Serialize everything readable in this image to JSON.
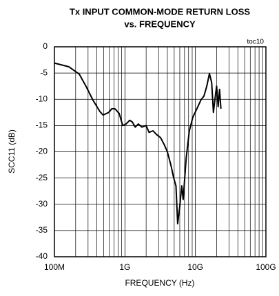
{
  "chart_data": {
    "type": "line",
    "title": "Tx INPUT COMMON-MODE RETURN LOSS",
    "subtitle": "vs. FREQUENCY",
    "annotation": "toc10",
    "x_label": "FREQUENCY (Hz)",
    "y_label": "SCC11 (dB)",
    "x_log": true,
    "grid": true,
    "xlim": [
      100000000.0,
      100000000000.0
    ],
    "ylim": [
      -40,
      0
    ],
    "xticks": [
      {
        "value": 100000000.0,
        "label": "100M"
      },
      {
        "value": 1000000000.0,
        "label": "1G"
      },
      {
        "value": 10000000000.0,
        "label": "10G"
      },
      {
        "value": 100000000000.0,
        "label": "100G"
      }
    ],
    "yticks": [
      0,
      -5,
      -10,
      -15,
      -20,
      -25,
      -30,
      -35,
      -40
    ],
    "x": [
      100000000.0,
      160000000.0,
      225000000.0,
      280000000.0,
      350000000.0,
      440000000.0,
      490000000.0,
      590000000.0,
      650000000.0,
      720000000.0,
      830000000.0,
      930000000.0,
      1040000000.0,
      1170000000.0,
      1270000000.0,
      1400000000.0,
      1550000000.0,
      1740000000.0,
      2000000000.0,
      2200000000.0,
      2500000000.0,
      2800000000.0,
      3200000000.0,
      3600000000.0,
      4000000000.0,
      4500000000.0,
      4900000000.0,
      5300000000.0,
      5600000000.0,
      6000000000.0,
      6400000000.0,
      6700000000.0,
      7400000000.0,
      8200000000.0,
      9200000000.0,
      10500000000.0,
      12000000000.0,
      13200000000.0,
      14500000000.0,
      15800000000.0,
      17000000000.0,
      18000000000.0,
      19400000000.0,
      20000000000.0,
      21000000000.0,
      22000000000.0,
      23000000000.0
    ],
    "series": [
      {
        "color": "#000000",
        "values": [
          -3.1,
          -3.8,
          -5.2,
          -7.5,
          -10.1,
          -12.3,
          -13,
          -12.5,
          -11.8,
          -11.8,
          -12.7,
          -15,
          -14.7,
          -14,
          -14.3,
          -15.3,
          -14.7,
          -15.3,
          -15,
          -16.3,
          -16,
          -16.7,
          -17.3,
          -18.6,
          -20,
          -22.6,
          -24.9,
          -26.5,
          -33.7,
          -30.4,
          -26.5,
          -29.1,
          -21.2,
          -16,
          -13.4,
          -11.8,
          -10.1,
          -9.4,
          -7.5,
          -5.1,
          -6.8,
          -12.5,
          -8.8,
          -7.5,
          -11.4,
          -8.1,
          -11.8
        ]
      }
    ]
  }
}
